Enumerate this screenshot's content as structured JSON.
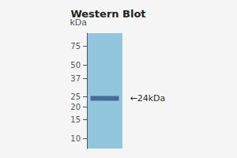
{
  "chart_data": {
    "type": "scatter",
    "title": "Western Blot",
    "ylabel": "kDa",
    "annotation": "←24kDa",
    "categories": [
      null
    ],
    "values": [
      24
    ],
    "color": "#3a5a8a",
    "marker": "rect",
    "log": "y",
    "ylim": [
      8,
      100
    ],
    "yticks": [
      10,
      15,
      20,
      25,
      37,
      50,
      75
    ],
    "grid": false
  }
}
